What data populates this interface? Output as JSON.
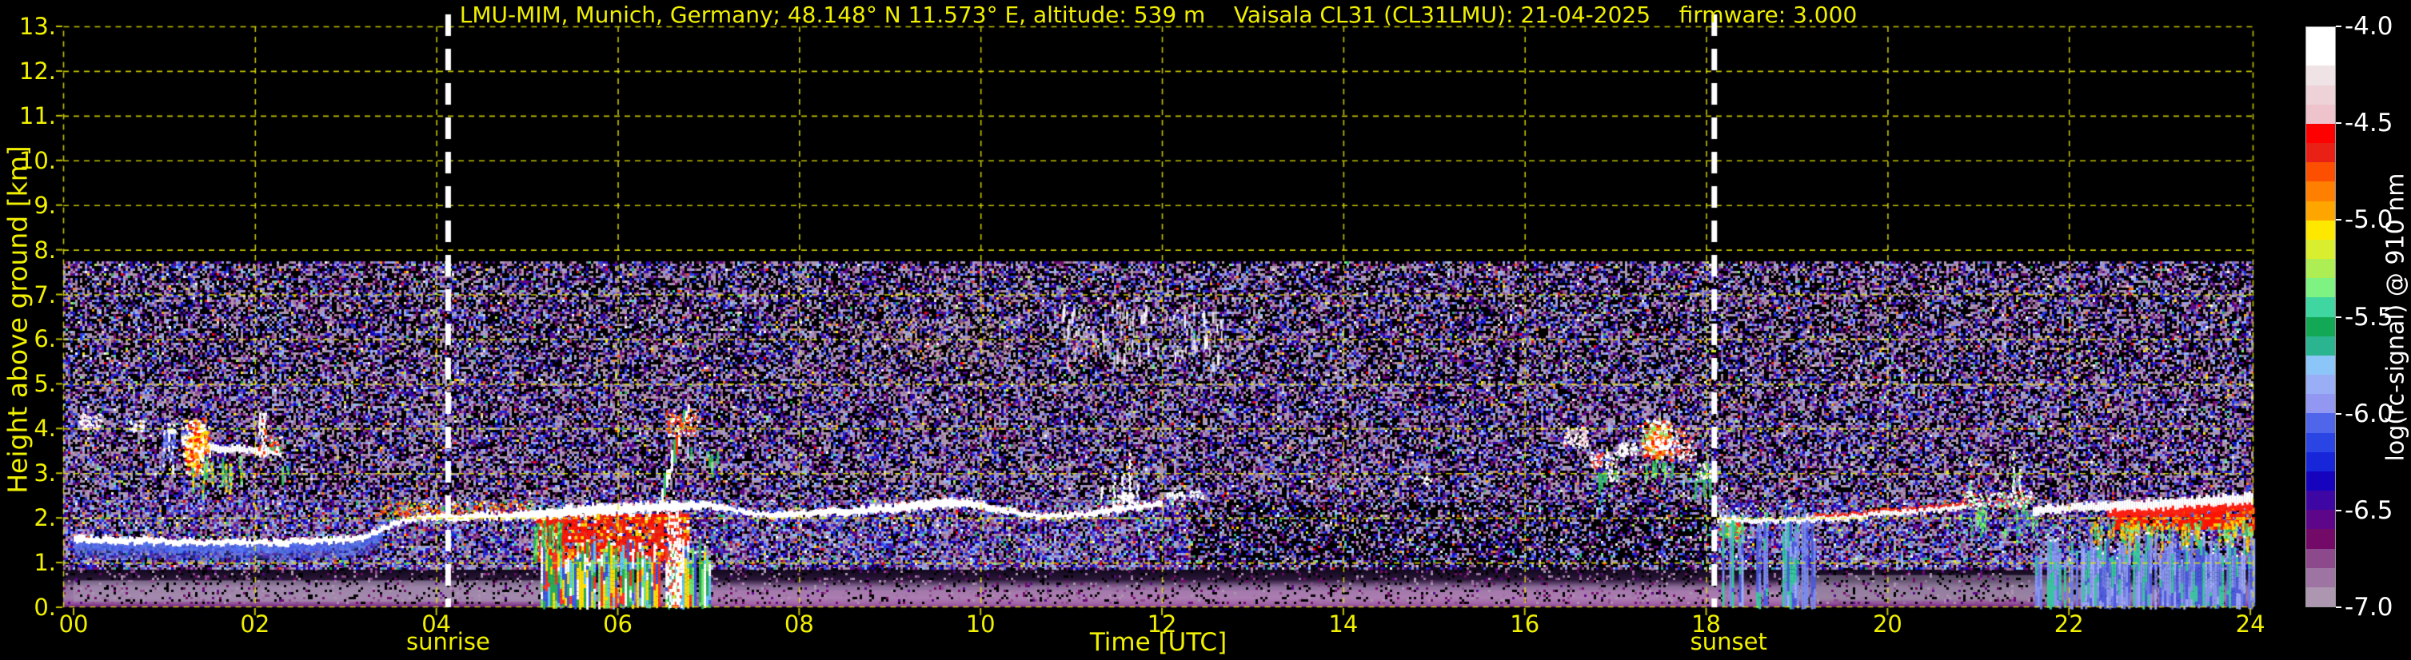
{
  "chart_data": {
    "type": "heatmap",
    "title": "LMU-MIM, Munich, Germany; 48.148° N 11.573° E, altitude: 539 m    Vaisala CL31 (CL31LMU): 21-04-2025    firmware: 3.000",
    "xlabel": "Time [UTC]",
    "ylabel": "Height above ground [km]",
    "colorbar_label": "log(rc-signal) @ 910 nm",
    "x_range": [
      0,
      24
    ],
    "x_tick_step": 2,
    "x_tick_labels": [
      "00",
      "02",
      "04",
      "06",
      "08",
      "10",
      "12",
      "14",
      "16",
      "18",
      "20",
      "22",
      "24"
    ],
    "y_range": [
      0,
      13
    ],
    "y_tick_labels": [
      "0.",
      "1.",
      "2.",
      "3.",
      "4.",
      "5.",
      "6.",
      "7.",
      "8.",
      "9.",
      "10.",
      "11.",
      "12.",
      "13."
    ],
    "colorbar_range": [
      -4.0,
      -7.0
    ],
    "colorbar_tick_values": [
      -4.0,
      -4.5,
      -5.0,
      -5.5,
      -6.0,
      -6.5,
      -7.0
    ],
    "colorbar_tick_labels": [
      "-4.0",
      "-4.5",
      "-5.0",
      "-5.5",
      "-6.0",
      "-6.5",
      "-7.0"
    ],
    "colorbar_colors": [
      "#ffffff",
      "#ffffff",
      "#f0e3e5",
      "#edd2d8",
      "#eec3cc",
      "#fe0000",
      "#e82016",
      "#fc5000",
      "#ff7f00",
      "#ffa500",
      "#ffe800",
      "#d9ee2e",
      "#adee55",
      "#7ff381",
      "#3fd6a2",
      "#13a855",
      "#2ab590",
      "#8cc5f7",
      "#99aef5",
      "#9297f2",
      "#4f66ea",
      "#2b44e4",
      "#1726d8",
      "#1503bd",
      "#3e07a4",
      "#5d0689",
      "#730a68",
      "#8c4a8c",
      "#9d74a2",
      "#ac96b0"
    ],
    "grid_color": "rgba(232,232,0,0.85)",
    "axis_text_color": "#f0f000",
    "colorbar_text_color": "#ffffff",
    "sun_line_color": "#ffffff",
    "sunrise": {
      "time": 4.13,
      "label": "sunrise"
    },
    "sunset": {
      "time": 18.09,
      "label": "sunset"
    },
    "noise": {
      "top_km": 7.75,
      "bands": [
        {
          "h0": 5.0,
          "h1": 7.75,
          "density": 0.6,
          "bright": 0.05
        },
        {
          "h0": 2.4,
          "h1": 5.0,
          "density": 0.66,
          "bright": 0.035
        },
        {
          "h0": 0.88,
          "h1": 2.4,
          "density": 0.8,
          "bright": 0.045
        }
      ],
      "afternoon_dim": {
        "t0": 12.3,
        "t1": 18.05,
        "h1": 2.35,
        "factor": 0.62
      },
      "ground_speckle": {
        "h1": 0.88,
        "density": 0.2
      }
    },
    "surface": {
      "gradient": [
        [
          0.9,
          "#0d0618"
        ],
        [
          0.62,
          "#2a1638"
        ],
        [
          0.45,
          "#8f6f9d"
        ],
        [
          0.2,
          "#a07aa8"
        ],
        [
          0.08,
          "#8f4f97"
        ],
        [
          0.02,
          "#6f2180"
        ],
        [
          0.0,
          "#4a1058"
        ]
      ],
      "night_band": {
        "t0": 0.0,
        "t1": 6.6,
        "h0": 0.12,
        "h1": 0.6,
        "color": "rgba(168,152,178,0.55)"
      },
      "day_band": {
        "t0": 6.6,
        "t1": 19.0,
        "h0": 0.02,
        "h1": 0.38,
        "color": "rgba(192,132,192,0.38)"
      },
      "dusk_band": {
        "t0": 18.9,
        "t1": 22.3,
        "h0": 0.15,
        "h1": 0.72,
        "color": "rgba(150,140,160,0.50)"
      }
    },
    "bl_line": {
      "color": "#ffffff",
      "glow_color": "rgba(80,110,240,0.85)",
      "segments": [
        {
          "name": "morning",
          "glow_until": 3.4,
          "pts": [
            [
              0,
              1.52,
              9
            ],
            [
              0.6,
              1.5,
              8
            ],
            [
              1.2,
              1.46,
              7
            ],
            [
              1.8,
              1.44,
              7
            ],
            [
              2.3,
              1.45,
              8
            ],
            [
              2.7,
              1.5,
              7
            ],
            [
              3.1,
              1.52,
              7
            ],
            [
              3.25,
              1.62,
              7
            ],
            [
              3.45,
              1.8,
              7
            ],
            [
              3.65,
              1.95,
              7
            ],
            [
              3.9,
              2.0,
              7
            ],
            [
              4.3,
              2.02,
              8
            ],
            [
              4.8,
              2.05,
              9
            ],
            [
              5.1,
              2.1,
              12
            ],
            [
              5.5,
              2.15,
              14
            ],
            [
              6.0,
              2.2,
              13
            ],
            [
              6.5,
              2.24,
              12
            ],
            [
              6.8,
              2.28,
              10
            ],
            [
              7.0,
              2.3,
              8
            ],
            [
              7.2,
              2.22,
              7
            ],
            [
              7.45,
              2.1,
              7
            ],
            [
              7.7,
              2.07,
              7
            ],
            [
              8.1,
              2.1,
              8
            ],
            [
              8.6,
              2.15,
              9
            ],
            [
              9.0,
              2.2,
              10
            ],
            [
              9.4,
              2.3,
              12
            ],
            [
              9.7,
              2.33,
              11
            ],
            [
              10.0,
              2.28,
              9
            ],
            [
              10.3,
              2.14,
              7
            ],
            [
              10.6,
              2.05,
              7
            ],
            [
              10.9,
              2.05,
              7
            ],
            [
              11.2,
              2.1,
              7
            ],
            [
              11.5,
              2.2,
              8
            ],
            [
              11.8,
              2.27,
              7
            ],
            [
              12.0,
              2.3,
              7
            ]
          ]
        },
        {
          "name": "midday-dash",
          "pts": [
            [
              12.05,
              2.48,
              7
            ],
            [
              12.25,
              2.5,
              7
            ]
          ]
        },
        {
          "name": "evening",
          "red_top_after": 19.2,
          "pts": [
            [
              18.12,
              1.97,
              7
            ],
            [
              18.5,
              1.94,
              6
            ],
            [
              19.0,
              1.95,
              6
            ],
            [
              19.4,
              1.98,
              6
            ],
            [
              19.8,
              2.06,
              6
            ],
            [
              20.2,
              2.12,
              6
            ],
            [
              20.6,
              2.2,
              6
            ],
            [
              20.85,
              2.28,
              6
            ]
          ]
        },
        {
          "name": "night",
          "red_below_after": 22.4,
          "pts": [
            [
              21.6,
              2.18,
              10
            ],
            [
              22.0,
              2.22,
              10
            ],
            [
              22.4,
              2.26,
              11
            ],
            [
              22.9,
              2.3,
              12
            ],
            [
              23.4,
              2.36,
              12
            ],
            [
              23.8,
              2.42,
              12
            ],
            [
              24.03,
              2.44,
              12
            ]
          ]
        }
      ]
    },
    "features": [
      {
        "type": "tint_patch",
        "t0": 8.6,
        "t1": 10.4,
        "h0": 5.4,
        "h1": 6.5,
        "n": 220,
        "colors": [
          "#d8a8a0",
          "#c89888",
          "#e8c8c0"
        ]
      },
      {
        "type": "wisp_field",
        "t0": 10.9,
        "t1": 12.7,
        "h0": 5.35,
        "h1": 6.6,
        "n": 110
      },
      {
        "type": "cloud_bits",
        "t0": 0.05,
        "t1": 0.3,
        "h0": 4.0,
        "h1": 4.35,
        "n": 60,
        "colors": [
          "#ffffff",
          "#ffccd5"
        ]
      },
      {
        "type": "cloud_bits",
        "t0": 0.6,
        "t1": 0.78,
        "h0": 3.95,
        "h1": 4.2,
        "n": 26,
        "colors": [
          "#ffffff"
        ]
      },
      {
        "type": "cloud_bits",
        "t0": 1.0,
        "t1": 1.12,
        "h0": 3.9,
        "h1": 4.15,
        "n": 18,
        "colors": [
          "#ffffff"
        ]
      },
      {
        "type": "fall_streaks",
        "t0": 0.98,
        "t1": 1.5,
        "h0": 2.6,
        "h1": 4.1,
        "density": 0.45,
        "palette": [
          "#8898f0",
          "#ffffff",
          "#4a5ae0"
        ],
        "lenmin": 0.3,
        "lenmax": 0.9
      },
      {
        "type": "blob",
        "t0": 1.18,
        "t1": 1.5,
        "h0": 2.9,
        "h1": 4.3,
        "n": 320,
        "colors": [
          "#ffffff",
          "#ff2000",
          "#ff8c00",
          "#ffe000"
        ]
      },
      {
        "type": "fall_streaks",
        "t0": 1.3,
        "t1": 1.85,
        "h0": 2.3,
        "h1": 3.4,
        "density": 0.5,
        "palette": [
          "#30c060",
          "#80f080",
          "#ffe000"
        ],
        "lenmin": 0.3,
        "lenmax": 0.8
      },
      {
        "type": "line_cloud",
        "t0": 1.5,
        "t1": 2.28,
        "h_pts": [
          3.55,
          3.55,
          3.5,
          3.45
        ],
        "w": 9
      },
      {
        "type": "streak_v",
        "t": 2.08,
        "h0": 3.4,
        "h1": 4.35,
        "w": 8,
        "colors": [
          "#ffffff",
          "#ffffff",
          "#ff3000"
        ]
      },
      {
        "type": "cloud_bits",
        "t0": 2.15,
        "t1": 2.3,
        "h0": 3.5,
        "h1": 3.85,
        "n": 40,
        "colors": [
          "#ffffff",
          "#ff3000",
          "#30c060"
        ]
      },
      {
        "type": "fall_streaks",
        "t0": 2.25,
        "t1": 2.5,
        "h0": 2.4,
        "h1": 3.2,
        "density": 0.35,
        "palette": [
          "#30c060",
          "#66e080"
        ],
        "lenmin": 0.2,
        "lenmax": 0.5
      },
      {
        "type": "cloud_bits",
        "t0": 3.3,
        "t1": 5.05,
        "h0": 2.05,
        "h1": 2.4,
        "n": 200,
        "colors": [
          "#ff3000",
          "#ff8c00",
          "#ffffff",
          "#30c060",
          "#ffe000"
        ]
      },
      {
        "type": "layer_patch",
        "t0": 5.1,
        "t1": 6.78,
        "h0": 1.05,
        "h1": 2.1,
        "density": 0.85,
        "palette": [
          "#ff1400",
          "#ff1400",
          "#e83010",
          "#ff7f00",
          "#ffffff",
          "#ffd000"
        ]
      },
      {
        "type": "rain_columns",
        "t0": 5.15,
        "t1": 7.02,
        "hTop": 1.25,
        "density": 0.9,
        "palette": [
          "#22b050",
          "#70e870",
          "#ffe000",
          "#ff3020",
          "#3858e0",
          "#60c8f0",
          "#ffffff"
        ]
      },
      {
        "type": "fall_streaks",
        "t0": 5.08,
        "t1": 5.4,
        "h0": 1.0,
        "h1": 1.95,
        "density": 0.6,
        "palette": [
          "#22b050",
          "#70e870"
        ],
        "lenmin": 0.4,
        "lenmax": 0.9
      },
      {
        "type": "streak_v",
        "t": 6.62,
        "h0": 0.02,
        "h1": 2.2,
        "w": 16,
        "colors": [
          "#ffffff",
          "#ffffff",
          "#ff4030"
        ]
      },
      {
        "type": "plume",
        "t0": 6.48,
        "t1": 6.78,
        "h0": 2.3,
        "h1": 4.35,
        "colors": [
          "#ffffff",
          "#ff3000",
          "#30c060"
        ]
      },
      {
        "type": "cloud_bits",
        "t0": 6.52,
        "t1": 6.88,
        "h0": 3.85,
        "h1": 4.45,
        "n": 90,
        "colors": [
          "#ff3000",
          "#ffffff",
          "#ff8c00"
        ]
      },
      {
        "type": "fall_streaks",
        "t0": 6.8,
        "t1": 7.2,
        "h0": 2.4,
        "h1": 3.6,
        "density": 0.3,
        "palette": [
          "#30c060",
          "#80f080"
        ],
        "lenmin": 0.2,
        "lenmax": 0.6
      },
      {
        "type": "spike_wisps",
        "spikes": [
          [
            11.32,
            2.2,
            2.7
          ],
          [
            11.46,
            2.2,
            2.95
          ],
          [
            11.56,
            2.25,
            3.0
          ],
          [
            11.63,
            2.3,
            3.45
          ],
          [
            11.72,
            2.2,
            2.75
          ]
        ]
      },
      {
        "type": "cloud_bits",
        "t0": 11.5,
        "t1": 11.68,
        "h0": 2.35,
        "h1": 2.6,
        "n": 45,
        "colors": [
          "#ffffff"
        ]
      },
      {
        "type": "cloud_bits",
        "t0": 12.3,
        "t1": 12.45,
        "h0": 2.45,
        "h1": 2.62,
        "n": 16,
        "colors": [
          "#ffffff"
        ]
      },
      {
        "type": "cloud_bits",
        "t0": 14.85,
        "t1": 14.97,
        "h0": 2.78,
        "h1": 2.95,
        "n": 10,
        "colors": [
          "#ffffff"
        ]
      },
      {
        "type": "cloud_bits",
        "t0": 16.42,
        "t1": 16.68,
        "h0": 3.6,
        "h1": 4.05,
        "n": 70,
        "colors": [
          "#ffffff",
          "#ffd0d8"
        ]
      },
      {
        "type": "cloud_bits",
        "t0": 16.72,
        "t1": 16.85,
        "h0": 3.15,
        "h1": 3.5,
        "n": 40,
        "colors": [
          "#ffffff",
          "#ff4030"
        ]
      },
      {
        "type": "cloud_bits",
        "t0": 16.88,
        "t1": 17.02,
        "h0": 2.85,
        "h1": 3.5,
        "n": 40,
        "colors": [
          "#ffffff"
        ]
      },
      {
        "type": "cloud_bits",
        "t0": 17.03,
        "t1": 17.22,
        "h0": 3.4,
        "h1": 3.72,
        "n": 45,
        "colors": [
          "#ffffff"
        ]
      },
      {
        "type": "blob",
        "t0": 17.28,
        "t1": 17.62,
        "h0": 3.25,
        "h1": 4.28,
        "n": 330,
        "colors": [
          "#ffffff",
          "#ff2000",
          "#ff8c00",
          "#80f080"
        ]
      },
      {
        "type": "cloud_bits",
        "t0": 17.62,
        "t1": 17.88,
        "h0": 3.3,
        "h1": 4.05,
        "n": 70,
        "colors": [
          "#ffffff",
          "#ff4030"
        ]
      },
      {
        "type": "cloud_bits",
        "t0": 17.88,
        "t1": 18.04,
        "h0": 2.85,
        "h1": 3.25,
        "n": 40,
        "colors": [
          "#ffffff",
          "#30c060"
        ]
      },
      {
        "type": "fall_streaks",
        "t0": 16.75,
        "t1": 17.05,
        "h0": 2.55,
        "h1": 3.1,
        "density": 0.3,
        "palette": [
          "#30c060"
        ],
        "lenmin": 0.2,
        "lenmax": 0.5
      },
      {
        "type": "fall_streaks",
        "t0": 17.3,
        "t1": 17.62,
        "h0": 2.8,
        "h1": 3.3,
        "density": 0.35,
        "palette": [
          "#30c060",
          "#80f080"
        ],
        "lenmin": 0.2,
        "lenmax": 0.5
      },
      {
        "type": "fall_streaks",
        "t0": 17.85,
        "t1": 18.05,
        "h0": 2.45,
        "h1": 2.9,
        "density": 0.3,
        "palette": [
          "#30c060"
        ],
        "lenmin": 0.2,
        "lenmax": 0.5
      },
      {
        "type": "blob",
        "t0": 18.13,
        "t1": 18.42,
        "h0": 1.45,
        "h1": 2.0,
        "n": 120,
        "colors": [
          "#30c060",
          "#ff3020",
          "#ffe000",
          "#80f080"
        ]
      },
      {
        "type": "rain_columns",
        "t0": 18.15,
        "t1": 18.4,
        "hTop": 1.85,
        "density": 0.85,
        "palette": [
          "#7a8cf0",
          "#4a5ae0",
          "#35c9a0",
          "#9ab0f8"
        ]
      },
      {
        "type": "rain_columns",
        "t0": 18.5,
        "t1": 18.66,
        "hTop": 1.8,
        "density": 0.8,
        "palette": [
          "#7a8cf0",
          "#4a5ae0",
          "#35c9a0"
        ]
      },
      {
        "type": "rain_columns",
        "t0": 18.84,
        "t1": 19.02,
        "hTop": 1.85,
        "density": 0.85,
        "palette": [
          "#7a8cf0",
          "#4a5ae0",
          "#35c9a0",
          "#9ab0f8"
        ]
      },
      {
        "type": "rain_columns",
        "t0": 19.05,
        "t1": 19.2,
        "hTop": 1.8,
        "density": 0.8,
        "palette": [
          "#7a8cf0",
          "#4a5ae0"
        ]
      },
      {
        "type": "spike_wisps",
        "spikes": [
          [
            20.9,
            2.35,
            3.35
          ],
          [
            21.38,
            2.35,
            3.5
          ],
          [
            21.45,
            2.3,
            3.1
          ]
        ]
      },
      {
        "type": "cloud_bits",
        "t0": 20.82,
        "t1": 21.6,
        "h0": 2.25,
        "h1": 2.62,
        "n": 150,
        "colors": [
          "#ffffff",
          "#ff4030",
          "#80f080"
        ]
      },
      {
        "type": "fall_streaks",
        "t0": 20.8,
        "t1": 21.65,
        "h0": 1.35,
        "h1": 2.3,
        "density": 0.4,
        "palette": [
          "#30c060",
          "#80f080",
          "#4a5ae0"
        ],
        "lenmin": 0.3,
        "lenmax": 0.8
      },
      {
        "type": "rain_columns",
        "t0": 21.6,
        "t1": 22.2,
        "hTop": 1.3,
        "density": 0.5,
        "palette": [
          "#8898f0",
          "#6a7ae8",
          "#35c9a0"
        ]
      },
      {
        "type": "layer_patch",
        "t0": 22.5,
        "t1": 24.03,
        "h0": 1.8,
        "h1": 2.25,
        "density": 0.8,
        "palette": [
          "#ff1400",
          "#ff1400",
          "#e83010",
          "#ff7f00",
          "#ffd000"
        ]
      },
      {
        "type": "fall_streaks",
        "t0": 22.25,
        "t1": 24.03,
        "h0": 1.15,
        "h1": 1.95,
        "density": 0.55,
        "palette": [
          "#ffe000",
          "#80f080",
          "#30c060",
          "#ffa000"
        ],
        "lenmin": 0.3,
        "lenmax": 0.7
      },
      {
        "type": "rain_columns",
        "t0": 22.15,
        "t1": 24.03,
        "hTop": 1.35,
        "density": 0.92,
        "palette": [
          "#9aaaf8",
          "#8898f0",
          "#6a7ae8",
          "#35c9a0",
          "#4a5ae0"
        ]
      }
    ]
  }
}
